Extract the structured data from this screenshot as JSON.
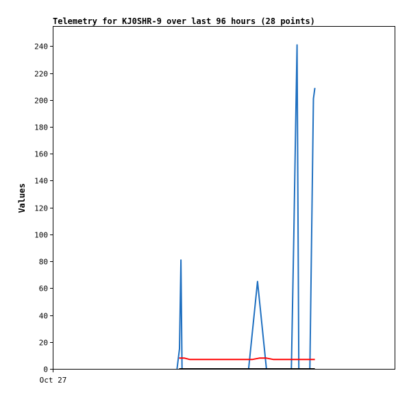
{
  "chart_data": {
    "type": "line",
    "title": "Telemetry for KJ0SHR-9 over last 96 hours (28 points)",
    "xlabel": "",
    "ylabel": "Values",
    "ylim": [
      0,
      255
    ],
    "yticks": [
      0,
      20,
      40,
      60,
      80,
      100,
      120,
      140,
      160,
      180,
      200,
      220,
      240
    ],
    "xlim": [
      0,
      96
    ],
    "xticks": [
      {
        "x": 0,
        "label": "Oct 27"
      }
    ],
    "grid": false,
    "series": [
      {
        "color": "#1e6fc0",
        "points": [
          [
            34.9,
            0
          ],
          [
            35.6,
            15
          ],
          [
            36.0,
            81
          ],
          [
            36.3,
            0
          ],
          [
            37.1,
            0
          ],
          [
            55.0,
            0
          ],
          [
            57.5,
            65
          ],
          [
            60.0,
            0
          ],
          [
            67.0,
            0
          ],
          [
            67.7,
            100
          ],
          [
            68.2,
            180
          ],
          [
            68.6,
            241
          ],
          [
            69.1,
            0
          ],
          [
            72.2,
            0
          ],
          [
            72.7,
            100
          ],
          [
            73.2,
            201
          ],
          [
            73.6,
            209
          ]
        ]
      },
      {
        "color": "#ff0000",
        "points": [
          [
            35.5,
            8
          ],
          [
            37.0,
            8
          ],
          [
            38.5,
            7
          ],
          [
            50.0,
            7
          ],
          [
            56.0,
            7
          ],
          [
            58.0,
            8
          ],
          [
            60.0,
            8
          ],
          [
            62.0,
            7
          ],
          [
            66.0,
            7
          ],
          [
            73.6,
            7
          ]
        ]
      },
      {
        "color": "#000000",
        "points": [
          [
            35.5,
            0
          ],
          [
            73.6,
            0
          ]
        ]
      }
    ]
  }
}
